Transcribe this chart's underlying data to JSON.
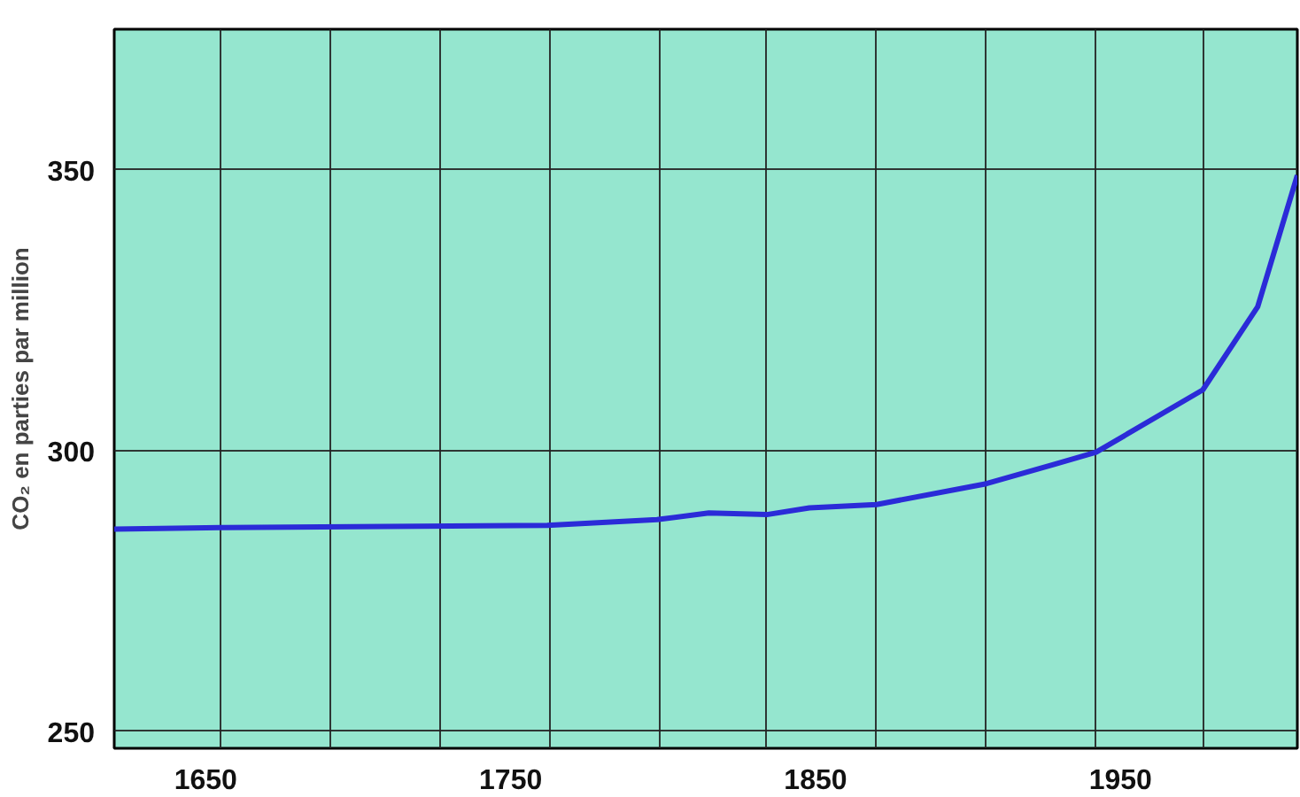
{
  "chart_data": {
    "type": "line",
    "ylabel": "CO₂ en parties par million",
    "x": [
      1620,
      1655,
      1762,
      1798,
      1815,
      1834,
      1848,
      1870,
      1906,
      1928,
      1942,
      1977,
      1995,
      2008
    ],
    "series": [
      {
        "color": "#2b2bd8",
        "values": [
          286,
          286.3,
          286.7,
          287.7,
          288.9,
          288.6,
          289.8,
          290.4,
          294.1,
          297.5,
          299.7,
          310.8,
          325.6,
          349
        ]
      }
    ],
    "xlim": [
      1620,
      2008
    ],
    "ylim": [
      247,
      375
    ],
    "xticks": [
      1650,
      1750,
      1850,
      1950,
      {
        "value": 1655,
        "label": null
      },
      {
        "value": 1691,
        "label": null
      },
      {
        "value": 1727,
        "label": null
      },
      {
        "value": 1763,
        "label": null
      },
      {
        "value": 1799,
        "label": null
      },
      {
        "value": 1834,
        "label": null
      },
      {
        "value": 1870,
        "label": null
      },
      {
        "value": 1906,
        "label": null
      },
      {
        "value": 1942,
        "label": null
      },
      {
        "value": 1977,
        "label": null
      }
    ],
    "yticks": [
      250,
      300,
      350
    ],
    "grid": true,
    "marker": "none",
    "line_style": "solid"
  }
}
